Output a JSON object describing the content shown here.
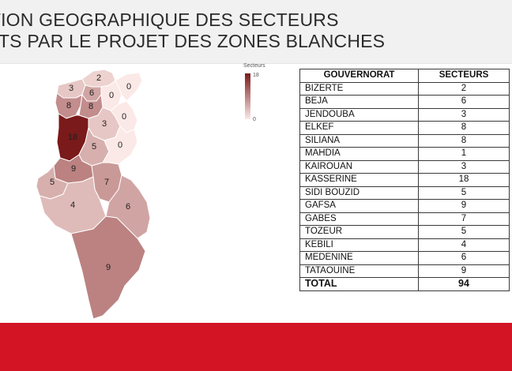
{
  "header": {
    "title_line1": "TITION GEOGRAPHIQUE DES SECTEURS",
    "title_line2": "ERTS PAR LE PROJET DES ZONES BLANCHES"
  },
  "map": {
    "legend_title": "Secteurs",
    "legend_max": "18",
    "legend_min": "0",
    "color_low": "#fbe9e7",
    "color_high": "#7a1a1a",
    "regions": [
      {
        "id": "bizerte",
        "value": 2,
        "label": "2"
      },
      {
        "id": "beja",
        "value": 6,
        "label": "6"
      },
      {
        "id": "jendouba",
        "value": 3,
        "label": "3"
      },
      {
        "id": "elkef",
        "value": 8,
        "label": "8"
      },
      {
        "id": "siliana",
        "value": 8,
        "label": "8"
      },
      {
        "id": "zaghouan",
        "value": 0,
        "label": "0"
      },
      {
        "id": "sousse",
        "value": 0,
        "label": "0"
      },
      {
        "id": "nabeul",
        "value": 0,
        "label": "0"
      },
      {
        "id": "kairouan",
        "value": 3,
        "label": "3"
      },
      {
        "id": "kasserine",
        "value": 18,
        "label": "18"
      },
      {
        "id": "sidibouzid",
        "value": 5,
        "label": "5"
      },
      {
        "id": "sfax",
        "value": 0,
        "label": "0"
      },
      {
        "id": "gafsa",
        "value": 9,
        "label": "9"
      },
      {
        "id": "tozeur",
        "value": 5,
        "label": "5"
      },
      {
        "id": "gabes",
        "value": 7,
        "label": "7"
      },
      {
        "id": "kebili",
        "value": 4,
        "label": "4"
      },
      {
        "id": "medenine",
        "value": 6,
        "label": "6"
      },
      {
        "id": "tataouine",
        "value": 9,
        "label": "9"
      }
    ]
  },
  "table": {
    "col1": "GOUVERNORAT",
    "col2": "SECTEURS",
    "rows": [
      {
        "gov": "BIZERTE",
        "sect": "2"
      },
      {
        "gov": "BEJA",
        "sect": "6"
      },
      {
        "gov": "JENDOUBA",
        "sect": "3"
      },
      {
        "gov": "ELKEF",
        "sect": "8"
      },
      {
        "gov": "SILIANA",
        "sect": "8"
      },
      {
        "gov": "MAHDIA",
        "sect": "1"
      },
      {
        "gov": "KAIROUAN",
        "sect": "3"
      },
      {
        "gov": "KASSERINE",
        "sect": "18"
      },
      {
        "gov": "SIDI BOUZID",
        "sect": "5"
      },
      {
        "gov": "GAFSA",
        "sect": "9"
      },
      {
        "gov": "GABES",
        "sect": "7"
      },
      {
        "gov": "TOZEUR",
        "sect": "5"
      },
      {
        "gov": "KEBILI",
        "sect": "4"
      },
      {
        "gov": "MEDENINE",
        "sect": "6"
      },
      {
        "gov": "TATAOUINE",
        "sect": "9"
      }
    ],
    "total_label": "TOTAL",
    "total_value": "94"
  }
}
